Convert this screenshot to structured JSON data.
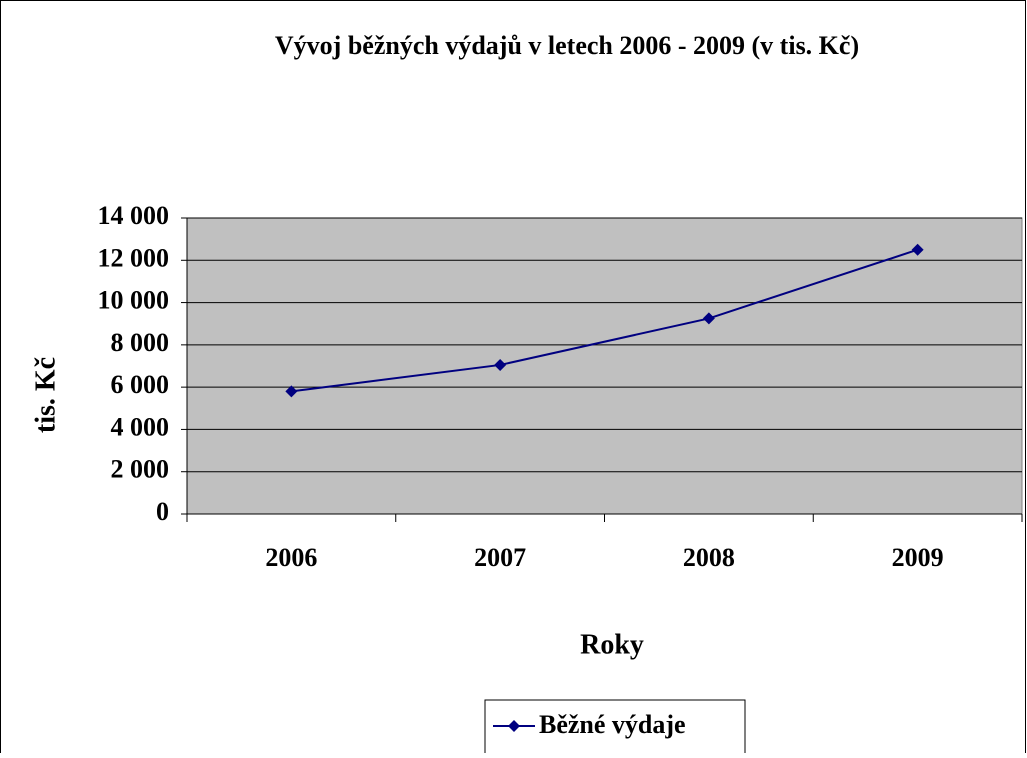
{
  "chart_data": {
    "type": "line",
    "title": "Vývoj běžných výdajů v letech 2006 - 2009 (v tis. Kč)",
    "x_label": "Roky",
    "y_label": "tis. Kč",
    "categories": [
      "2006",
      "2007",
      "2008",
      "2009"
    ],
    "series": [
      {
        "name": "Běžné výdaje",
        "color": "#000080",
        "values": [
          5800,
          7050,
          9250,
          12500
        ]
      }
    ],
    "ylim": [
      0,
      14000
    ],
    "yticks": [
      0,
      {
        "value": 2000,
        "label": "2 000"
      },
      {
        "value": 4000,
        "label": "4 000"
      },
      {
        "value": 6000,
        "label": "6 000"
      },
      {
        "value": 8000,
        "label": "8 000"
      },
      {
        "value": 10000,
        "label": "10 000"
      },
      {
        "value": 12000,
        "label": "12 000"
      },
      {
        "value": 14000,
        "label": "14 000"
      }
    ],
    "grid": true,
    "plot_background": "#c0c0c0",
    "legend": "bottom"
  }
}
